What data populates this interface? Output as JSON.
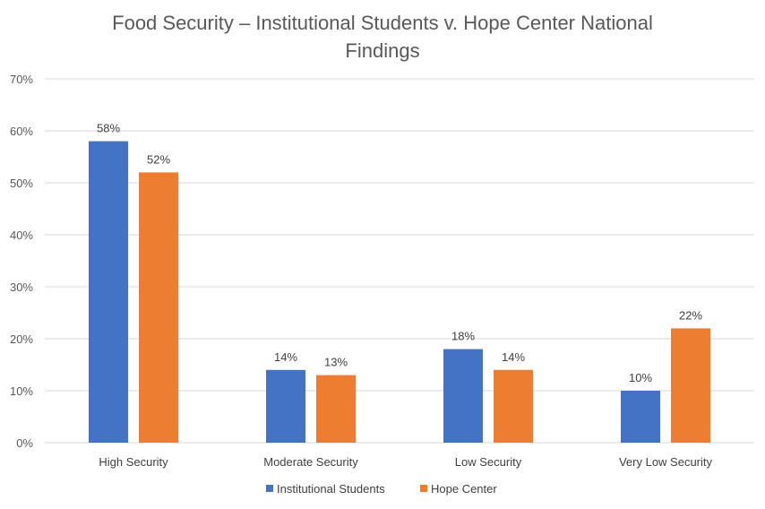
{
  "chart_data": {
    "type": "bar",
    "title_lines": [
      "Food Security – Institutional Students v. Hope Center National",
      "Findings"
    ],
    "categories": [
      "High Security",
      "Moderate Security",
      "Low Security",
      "Very Low Security"
    ],
    "series": [
      {
        "name": "Institutional Students",
        "color": "#4472C4",
        "values": [
          58,
          14,
          18,
          10
        ]
      },
      {
        "name": "Hope Center",
        "color": "#ED7D31",
        "values": [
          52,
          13,
          14,
          22
        ]
      }
    ],
    "y_ticks": [
      0,
      10,
      20,
      30,
      40,
      50,
      60,
      70
    ],
    "y_tick_suffix": "%",
    "ylim": [
      0,
      70
    ],
    "value_suffix": "%",
    "grid": true,
    "legend_position": "bottom",
    "gridline_color": "#D9D9D9"
  }
}
